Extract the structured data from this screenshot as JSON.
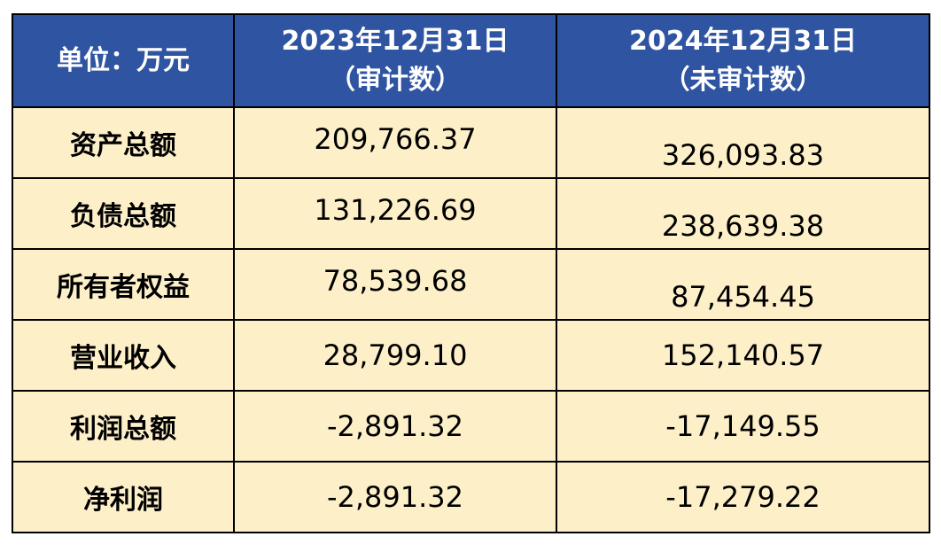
{
  "table": {
    "header": {
      "unit": "单位：万元",
      "columns": [
        {
          "date": "2023年12月31日",
          "note": "（审计数）"
        },
        {
          "date": "2024年12月31日",
          "note": "（未审计数）"
        }
      ]
    },
    "rows": [
      [
        "资产总额",
        "209,766.37",
        "326,093.83"
      ],
      [
        "负债总额",
        "131,226.69",
        "238,639.38"
      ],
      [
        "所有者权益",
        "78,539.68",
        "87,454.45"
      ],
      [
        "营业收入",
        "28,799.10",
        "152,140.57"
      ],
      [
        "利润总额",
        "-2,891.32",
        "-17,149.55"
      ],
      [
        "净利润",
        "-2,891.32",
        "-17,279.22"
      ]
    ]
  }
}
